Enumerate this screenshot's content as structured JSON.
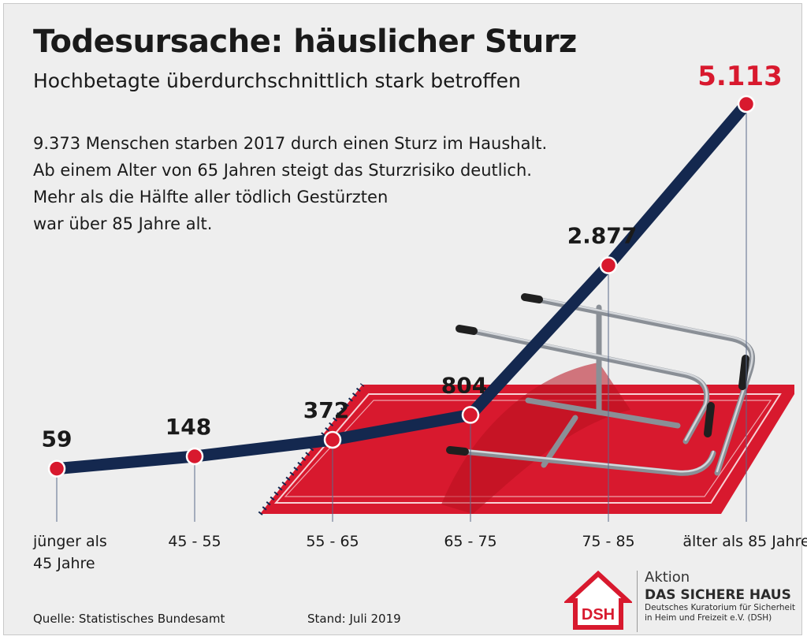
{
  "header": {
    "title": "Todesursache: häuslicher Sturz",
    "subtitle": "Hochbetagte überdurchschnittlich stark betroffen"
  },
  "description": [
    "9.373 Menschen starben 2017 durch einen Sturz im Haushalt.",
    "Ab einem Alter von 65 Jahren steigt das Sturzrisiko deutlich.",
    "Mehr als die Hälfte aller tödlich Gestürzten",
    "war über 85 Jahre alt."
  ],
  "chart_data": {
    "type": "line",
    "categories": [
      [
        "jünger als",
        "45 Jahre"
      ],
      [
        "45 - 55"
      ],
      [
        "55 - 65"
      ],
      [
        "65 - 75"
      ],
      [
        "75 - 85"
      ],
      [
        "älter als 85 Jahre"
      ]
    ],
    "values": [
      59,
      148,
      372,
      804,
      2877,
      5113
    ],
    "value_labels": [
      "59",
      "148",
      "372",
      "804",
      "2.877",
      "5.113"
    ],
    "highlight_index": 5,
    "colors": {
      "line": "#14284f",
      "marker": "#d8192e",
      "highlight_label": "#d8192e",
      "carpet": "#d8192e"
    },
    "grid": false,
    "legend": "none"
  },
  "illustration": {
    "icons": [
      "carpet-icon",
      "walker-icon"
    ]
  },
  "footer": {
    "source": "Quelle: Statistisches Bundesamt",
    "date": "Stand: Juli 2019"
  },
  "logo": {
    "mark": "DSH",
    "line1": "Aktion",
    "line2": "DAS SICHERE HAUS",
    "line3": "Deutsches Kuratorium für Sicherheit",
    "line4": "in Heim und Freizeit e.V. (DSH)"
  }
}
